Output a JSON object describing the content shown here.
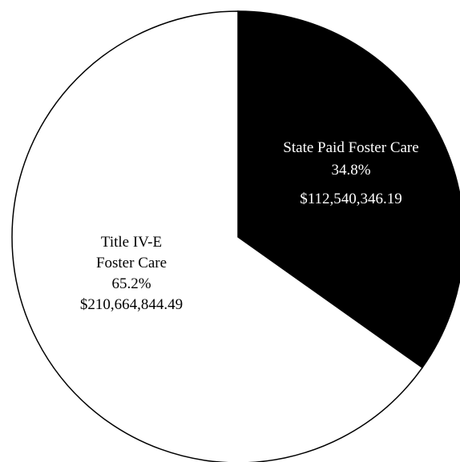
{
  "chart_data": {
    "type": "pie",
    "title": "",
    "slices": [
      {
        "label_lines": [
          "State Paid Foster Care"
        ],
        "percent_label": "34.8%",
        "amount_label": "$112,540,346.19",
        "value": 112540346.19,
        "percent": 34.8,
        "fill": "#000000",
        "text_color": "#ffffff"
      },
      {
        "label_lines": [
          "Title IV-E",
          "Foster Care"
        ],
        "percent_label": "65.2%",
        "amount_label": "$210,664,844.49",
        "value": 210664844.49,
        "percent": 65.2,
        "fill": "#ffffff",
        "text_color": "#000000"
      }
    ],
    "start_angle_deg": 0,
    "direction": "clockwise",
    "stroke_color": "#000000"
  }
}
